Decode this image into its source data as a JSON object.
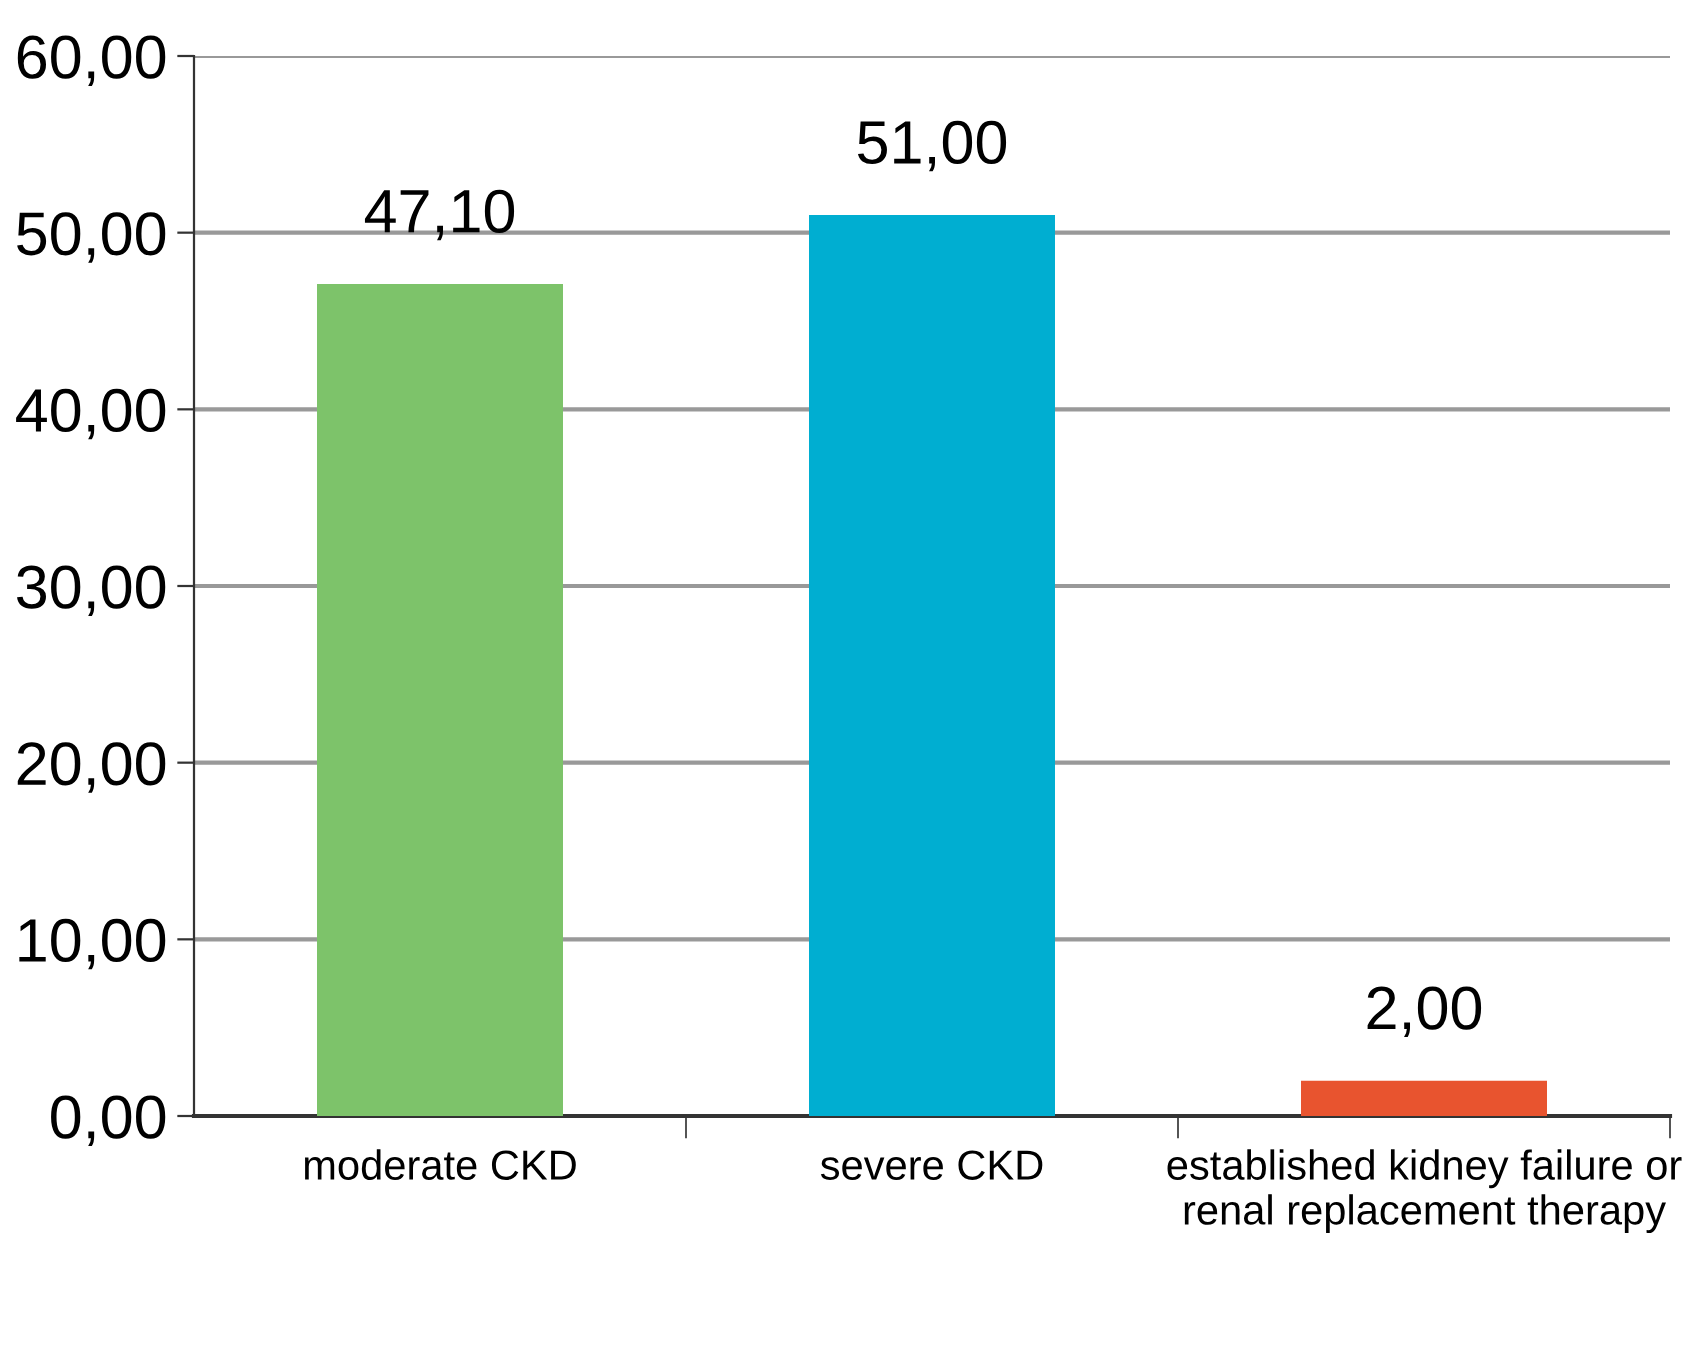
{
  "chart_data": {
    "type": "bar",
    "categories": [
      "moderate CKD",
      "severe CKD",
      "established kidney failure or\nrenal replacement therapy"
    ],
    "values": [
      47.1,
      51.0,
      2.0
    ],
    "colors": [
      "#7dc36a",
      "#00aed1",
      "#e8542f"
    ],
    "value_labels": [
      "47,10",
      "51,00",
      "2,00"
    ],
    "ylim": [
      0,
      60
    ],
    "yticks": [
      {
        "value": 0,
        "label": "0,00"
      },
      {
        "value": 10,
        "label": "10,00"
      },
      {
        "value": 20,
        "label": "20,00"
      },
      {
        "value": 30,
        "label": "30,00"
      },
      {
        "value": 40,
        "label": "40,00"
      },
      {
        "value": 50,
        "label": "50,00"
      },
      {
        "value": 60,
        "label": "60,00"
      }
    ],
    "grid": "y",
    "legend": false
  }
}
